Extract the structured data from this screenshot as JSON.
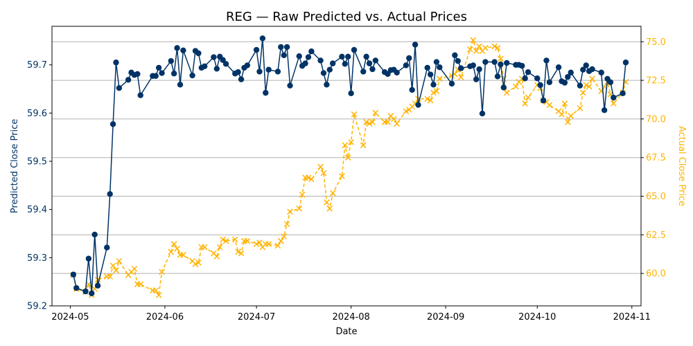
{
  "chart_data": {
    "type": "line",
    "title": "REG — Raw Predicted vs. Actual Prices",
    "xlabel": "Date",
    "ylabel_left": "Predicted Close Price",
    "ylabel_right": "Actual Close Price",
    "xlim": [
      "2024-04-25",
      "2024-11-04"
    ],
    "ylim_left": [
      59.2,
      59.78
    ],
    "ylim_right": [
      57.9,
      76.0
    ],
    "x_ticks": [
      "2024-05-01",
      "2024-06-01",
      "2024-07-01",
      "2024-08-01",
      "2024-09-01",
      "2024-10-01",
      "2024-11-01"
    ],
    "x_tick_labels": [
      "2024-05",
      "2024-06",
      "2024-07",
      "2024-08",
      "2024-09",
      "2024-10",
      "2024-11"
    ],
    "y_left_ticks": [
      59.2,
      59.3,
      59.4,
      59.5,
      59.6,
      59.7
    ],
    "y_left_tick_labels": [
      "59.2",
      "59.3",
      "59.4",
      "59.5",
      "59.6",
      "59.7"
    ],
    "y_right_ticks": [
      60.0,
      62.5,
      65.0,
      67.5,
      70.0,
      72.5,
      75.0
    ],
    "y_right_tick_labels": [
      "60.0",
      "62.5",
      "65.0",
      "67.5",
      "70.0",
      "72.5",
      "75.0"
    ],
    "grid": "horizontal (right axis)",
    "series": [
      {
        "axis": "left",
        "color": "#003366",
        "marker": "circle",
        "points": [
          [
            "2024-05-02",
            59.265
          ],
          [
            "2024-05-03",
            59.237
          ],
          [
            "2024-05-06",
            59.23
          ],
          [
            "2024-05-07",
            59.298
          ],
          [
            "2024-05-08",
            59.226
          ],
          [
            "2024-05-09",
            59.348
          ],
          [
            "2024-05-10",
            59.242
          ],
          [
            "2024-05-13",
            59.321
          ],
          [
            "2024-05-14",
            59.432
          ],
          [
            "2024-05-15",
            59.577
          ],
          [
            "2024-05-16",
            59.705
          ],
          [
            "2024-05-17",
            59.652
          ],
          [
            "2024-05-20",
            59.669
          ],
          [
            "2024-05-21",
            59.684
          ],
          [
            "2024-05-22",
            59.679
          ],
          [
            "2024-05-23",
            59.681
          ],
          [
            "2024-05-24",
            59.637
          ],
          [
            "2024-05-28",
            59.677
          ],
          [
            "2024-05-29",
            59.677
          ],
          [
            "2024-05-30",
            59.694
          ],
          [
            "2024-05-31",
            59.683
          ],
          [
            "2024-06-03",
            59.708
          ],
          [
            "2024-06-04",
            59.682
          ],
          [
            "2024-06-05",
            59.735
          ],
          [
            "2024-06-06",
            59.659
          ],
          [
            "2024-06-07",
            59.73
          ],
          [
            "2024-06-10",
            59.678
          ],
          [
            "2024-06-11",
            59.729
          ],
          [
            "2024-06-12",
            59.724
          ],
          [
            "2024-06-13",
            59.694
          ],
          [
            "2024-06-14",
            59.697
          ],
          [
            "2024-06-17",
            59.716
          ],
          [
            "2024-06-18",
            59.692
          ],
          [
            "2024-06-19",
            59.717
          ],
          [
            "2024-06-20",
            59.71
          ],
          [
            "2024-06-21",
            59.702
          ],
          [
            "2024-06-24",
            59.682
          ],
          [
            "2024-06-25",
            59.685
          ],
          [
            "2024-06-26",
            59.67
          ],
          [
            "2024-06-27",
            59.694
          ],
          [
            "2024-06-28",
            59.699
          ],
          [
            "2024-07-01",
            59.731
          ],
          [
            "2024-07-02",
            59.686
          ],
          [
            "2024-07-03",
            59.755
          ],
          [
            "2024-07-04",
            59.642
          ],
          [
            "2024-07-05",
            59.69
          ],
          [
            "2024-07-08",
            59.686
          ],
          [
            "2024-07-09",
            59.737
          ],
          [
            "2024-07-10",
            59.72
          ],
          [
            "2024-07-11",
            59.737
          ],
          [
            "2024-07-12",
            59.657
          ],
          [
            "2024-07-15",
            59.718
          ],
          [
            "2024-07-16",
            59.698
          ],
          [
            "2024-07-17",
            59.703
          ],
          [
            "2024-07-18",
            59.716
          ],
          [
            "2024-07-19",
            59.728
          ],
          [
            "2024-07-22",
            59.709
          ],
          [
            "2024-07-23",
            59.683
          ],
          [
            "2024-07-24",
            59.659
          ],
          [
            "2024-07-25",
            59.69
          ],
          [
            "2024-07-26",
            59.703
          ],
          [
            "2024-07-29",
            59.717
          ],
          [
            "2024-07-30",
            59.702
          ],
          [
            "2024-07-31",
            59.717
          ],
          [
            "2024-08-01",
            59.641
          ],
          [
            "2024-08-02",
            59.731
          ],
          [
            "2024-08-05",
            59.686
          ],
          [
            "2024-08-06",
            59.717
          ],
          [
            "2024-08-07",
            59.703
          ],
          [
            "2024-08-08",
            59.691
          ],
          [
            "2024-08-09",
            59.709
          ],
          [
            "2024-08-12",
            59.685
          ],
          [
            "2024-08-13",
            59.681
          ],
          [
            "2024-08-14",
            59.689
          ],
          [
            "2024-08-15",
            59.69
          ],
          [
            "2024-08-16",
            59.684
          ],
          [
            "2024-08-19",
            59.699
          ],
          [
            "2024-08-20",
            59.714
          ],
          [
            "2024-08-21",
            59.648
          ],
          [
            "2024-08-22",
            59.742
          ],
          [
            "2024-08-23",
            59.617
          ],
          [
            "2024-08-26",
            59.694
          ],
          [
            "2024-08-27",
            59.68
          ],
          [
            "2024-08-28",
            59.659
          ],
          [
            "2024-08-29",
            59.706
          ],
          [
            "2024-08-30",
            59.695
          ],
          [
            "2024-09-03",
            59.661
          ],
          [
            "2024-09-04",
            59.72
          ],
          [
            "2024-09-05",
            59.708
          ],
          [
            "2024-09-06",
            59.693
          ],
          [
            "2024-09-09",
            59.697
          ],
          [
            "2024-09-10",
            59.699
          ],
          [
            "2024-09-11",
            59.67
          ],
          [
            "2024-09-12",
            59.691
          ],
          [
            "2024-09-13",
            59.599
          ],
          [
            "2024-09-14",
            59.706
          ],
          [
            "2024-09-17",
            59.706
          ],
          [
            "2024-09-18",
            59.676
          ],
          [
            "2024-09-19",
            59.701
          ],
          [
            "2024-09-20",
            59.653
          ],
          [
            "2024-09-21",
            59.704
          ],
          [
            "2024-09-24",
            59.7
          ],
          [
            "2024-09-25",
            59.7
          ],
          [
            "2024-09-26",
            59.698
          ],
          [
            "2024-09-27",
            59.672
          ],
          [
            "2024-09-28",
            59.685
          ],
          [
            "2024-10-01",
            59.672
          ],
          [
            "2024-10-02",
            59.658
          ],
          [
            "2024-10-03",
            59.626
          ],
          [
            "2024-10-04",
            59.709
          ],
          [
            "2024-10-05",
            59.664
          ],
          [
            "2024-10-08",
            59.695
          ],
          [
            "2024-10-09",
            59.666
          ],
          [
            "2024-10-10",
            59.663
          ],
          [
            "2024-10-11",
            59.675
          ],
          [
            "2024-10-12",
            59.684
          ],
          [
            "2024-10-15",
            59.657
          ],
          [
            "2024-10-16",
            59.69
          ],
          [
            "2024-10-17",
            59.699
          ],
          [
            "2024-10-18",
            59.687
          ],
          [
            "2024-10-19",
            59.691
          ],
          [
            "2024-10-22",
            59.684
          ],
          [
            "2024-10-23",
            59.606
          ],
          [
            "2024-10-24",
            59.671
          ],
          [
            "2024-10-25",
            59.664
          ],
          [
            "2024-10-26",
            59.632
          ],
          [
            "2024-10-29",
            59.641
          ],
          [
            "2024-10-30",
            59.705
          ]
        ]
      },
      {
        "axis": "right",
        "color": "#FFB300",
        "marker": "x",
        "points": [
          [
            "2024-05-02",
            59.9
          ],
          [
            "2024-05-03",
            59.0
          ],
          [
            "2024-05-06",
            58.8
          ],
          [
            "2024-05-07",
            59.3
          ],
          [
            "2024-05-08",
            58.6
          ],
          [
            "2024-05-09",
            59.0
          ],
          [
            "2024-05-10",
            59.6
          ],
          [
            "2024-05-13",
            59.8
          ],
          [
            "2024-05-14",
            59.8
          ],
          [
            "2024-05-15",
            60.5
          ],
          [
            "2024-05-16",
            60.2
          ],
          [
            "2024-05-17",
            60.8
          ],
          [
            "2024-05-20",
            59.9
          ],
          [
            "2024-05-21",
            60.1
          ],
          [
            "2024-05-22",
            60.3
          ],
          [
            "2024-05-23",
            59.3
          ],
          [
            "2024-05-24",
            59.3
          ],
          [
            "2024-05-28",
            58.9
          ],
          [
            "2024-05-29",
            58.9
          ],
          [
            "2024-05-30",
            58.6
          ],
          [
            "2024-05-31",
            60.1
          ],
          [
            "2024-06-03",
            61.4
          ],
          [
            "2024-06-04",
            61.9
          ],
          [
            "2024-06-05",
            61.6
          ],
          [
            "2024-06-06",
            61.2
          ],
          [
            "2024-06-07",
            61.2
          ],
          [
            "2024-06-10",
            60.8
          ],
          [
            "2024-06-11",
            60.6
          ],
          [
            "2024-06-12",
            60.7
          ],
          [
            "2024-06-13",
            61.7
          ],
          [
            "2024-06-14",
            61.7
          ],
          [
            "2024-06-17",
            61.3
          ],
          [
            "2024-06-18",
            61.1
          ],
          [
            "2024-06-19",
            61.7
          ],
          [
            "2024-06-20",
            62.2
          ],
          [
            "2024-06-21",
            62.1
          ],
          [
            "2024-06-24",
            62.2
          ],
          [
            "2024-06-25",
            61.4
          ],
          [
            "2024-06-26",
            61.3
          ],
          [
            "2024-06-27",
            62.1
          ],
          [
            "2024-06-28",
            62.1
          ],
          [
            "2024-07-01",
            61.9
          ],
          [
            "2024-07-02",
            62.0
          ],
          [
            "2024-07-03",
            61.7
          ],
          [
            "2024-07-04",
            61.9
          ],
          [
            "2024-07-05",
            61.9
          ],
          [
            "2024-07-08",
            61.8
          ],
          [
            "2024-07-09",
            62.1
          ],
          [
            "2024-07-10",
            62.4
          ],
          [
            "2024-07-11",
            63.2
          ],
          [
            "2024-07-12",
            64.0
          ],
          [
            "2024-07-15",
            64.2
          ],
          [
            "2024-07-16",
            65.1
          ],
          [
            "2024-07-17",
            66.2
          ],
          [
            "2024-07-18",
            66.2
          ],
          [
            "2024-07-19",
            66.1
          ],
          [
            "2024-07-22",
            66.9
          ],
          [
            "2024-07-23",
            66.5
          ],
          [
            "2024-07-24",
            64.6
          ],
          [
            "2024-07-25",
            64.2
          ],
          [
            "2024-07-26",
            65.2
          ],
          [
            "2024-07-29",
            66.3
          ],
          [
            "2024-07-30",
            68.3
          ],
          [
            "2024-07-31",
            67.5
          ],
          [
            "2024-08-01",
            68.5
          ],
          [
            "2024-08-02",
            70.3
          ],
          [
            "2024-08-05",
            68.3
          ],
          [
            "2024-08-06",
            69.8
          ],
          [
            "2024-08-07",
            69.7
          ],
          [
            "2024-08-08",
            69.8
          ],
          [
            "2024-08-09",
            70.4
          ],
          [
            "2024-08-12",
            69.8
          ],
          [
            "2024-08-13",
            69.8
          ],
          [
            "2024-08-14",
            70.2
          ],
          [
            "2024-08-15",
            70.0
          ],
          [
            "2024-08-16",
            69.7
          ],
          [
            "2024-08-19",
            70.5
          ],
          [
            "2024-08-20",
            70.6
          ],
          [
            "2024-08-21",
            70.8
          ],
          [
            "2024-08-22",
            71.0
          ],
          [
            "2024-08-23",
            71.3
          ],
          [
            "2024-08-26",
            71.3
          ],
          [
            "2024-08-27",
            71.2
          ],
          [
            "2024-08-28",
            71.7
          ],
          [
            "2024-08-29",
            71.8
          ],
          [
            "2024-08-30",
            72.6
          ],
          [
            "2024-09-03",
            72.8
          ],
          [
            "2024-09-04",
            72.9
          ],
          [
            "2024-09-05",
            73.2
          ],
          [
            "2024-09-06",
            72.7
          ],
          [
            "2024-09-09",
            74.5
          ],
          [
            "2024-09-10",
            75.1
          ],
          [
            "2024-09-11",
            74.4
          ],
          [
            "2024-09-12",
            74.7
          ],
          [
            "2024-09-13",
            74.4
          ],
          [
            "2024-09-14",
            74.6
          ],
          [
            "2024-09-17",
            74.7
          ],
          [
            "2024-09-18",
            74.6
          ],
          [
            "2024-09-19",
            73.9
          ],
          [
            "2024-09-20",
            72.6
          ],
          [
            "2024-09-21",
            71.7
          ],
          [
            "2024-09-24",
            72.1
          ],
          [
            "2024-09-25",
            72.4
          ],
          [
            "2024-09-26",
            72.6
          ],
          [
            "2024-09-27",
            71.0
          ],
          [
            "2024-09-28",
            71.4
          ],
          [
            "2024-10-01",
            72.2
          ],
          [
            "2024-10-02",
            72.0
          ],
          [
            "2024-10-03",
            71.2
          ],
          [
            "2024-10-04",
            71.1
          ],
          [
            "2024-10-05",
            70.9
          ],
          [
            "2024-10-08",
            70.5
          ],
          [
            "2024-10-09",
            70.3
          ],
          [
            "2024-10-10",
            71.0
          ],
          [
            "2024-10-11",
            69.8
          ],
          [
            "2024-10-12",
            70.2
          ],
          [
            "2024-10-15",
            70.7
          ],
          [
            "2024-10-16",
            71.7
          ],
          [
            "2024-10-17",
            72.2
          ],
          [
            "2024-10-18",
            72.1
          ],
          [
            "2024-10-19",
            72.6
          ],
          [
            "2024-10-22",
            71.8
          ],
          [
            "2024-10-23",
            72.1
          ],
          [
            "2024-10-24",
            72.4
          ],
          [
            "2024-10-25",
            71.6
          ],
          [
            "2024-10-26",
            71.0
          ],
          [
            "2024-10-29",
            71.7
          ],
          [
            "2024-10-30",
            72.4
          ]
        ]
      }
    ]
  }
}
